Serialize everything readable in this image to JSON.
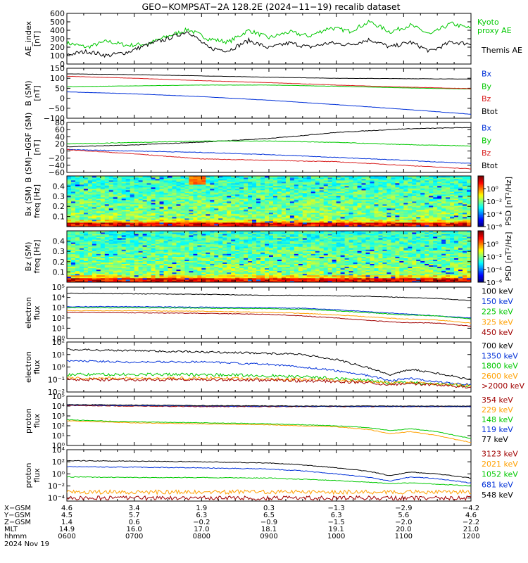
{
  "title": "GEO−KOMPSAT−2A 128.2E (2024−11−19) recalib dataset",
  "colors": {
    "black": "#000000",
    "blue": "#0030d8",
    "green": "#00c800",
    "red": "#d81e1e",
    "orange": "#ffa000",
    "darkred": "#a00000"
  },
  "chart_data": [
    {
      "id": "ae",
      "type": "line",
      "ylabel": [
        "AE_index",
        "[nT]"
      ],
      "ylim": [
        0,
        600
      ],
      "yticks": [
        "600",
        "500",
        "400",
        "300",
        "200",
        "100",
        "0"
      ],
      "ytick_values": [
        600,
        500,
        400,
        300,
        200,
        100,
        0
      ],
      "x_hours": [
        6.0,
        6.3,
        6.6,
        6.9,
        7.2,
        7.5,
        7.8,
        8.1,
        8.4,
        8.7,
        9.0,
        9.3,
        9.6,
        9.9,
        10.2,
        10.5,
        10.8,
        11.1,
        11.4,
        11.7,
        12.0
      ],
      "series": [
        {
          "name": "Kyoto proxy AE",
          "color": "green",
          "values": [
            250,
            200,
            270,
            220,
            240,
            330,
            410,
            300,
            260,
            400,
            310,
            380,
            330,
            430,
            390,
            500,
            380,
            460,
            350,
            480,
            420
          ]
        },
        {
          "name": "Themis AE",
          "color": "black",
          "values": [
            110,
            150,
            100,
            140,
            230,
            300,
            390,
            190,
            160,
            280,
            190,
            250,
            200,
            250,
            230,
            290,
            200,
            260,
            150,
            260,
            240
          ]
        }
      ],
      "legend": [
        "Kyoto proxy AE",
        "Themis AE"
      ]
    },
    {
      "id": "bsm",
      "type": "line",
      "ylabel": [
        "B (SM)",
        "[nT]"
      ],
      "ylim": [
        -100,
        150
      ],
      "yticks": [
        "150",
        "100",
        "50",
        "0",
        "−50",
        "−100"
      ],
      "ytick_values": [
        150,
        100,
        50,
        0,
        -50,
        -100
      ],
      "x_hours": [
        6.0,
        7.0,
        8.0,
        9.0,
        10.0,
        11.0,
        12.0
      ],
      "series": [
        {
          "name": "Btot",
          "color": "black",
          "values": [
            122,
            118,
            112,
            105,
            100,
            98,
            96
          ]
        },
        {
          "name": "By",
          "color": "green",
          "values": [
            58,
            62,
            66,
            66,
            60,
            52,
            46
          ]
        },
        {
          "name": "Bz",
          "color": "red",
          "values": [
            110,
            100,
            88,
            78,
            66,
            56,
            48
          ]
        },
        {
          "name": "Bx",
          "color": "blue",
          "values": [
            32,
            22,
            8,
            -10,
            -32,
            -55,
            -80
          ]
        }
      ],
      "legend": [
        "Bx",
        "By",
        "Bz",
        "Btot"
      ]
    },
    {
      "id": "bigrf",
      "type": "line",
      "ylabel": [
        "B (SM)−IGRF (SM)",
        "[nT]"
      ],
      "ylim": [
        -60,
        80
      ],
      "yticks": [
        "80",
        "60",
        "40",
        "20",
        "0",
        "−20",
        "−40",
        "−60"
      ],
      "ytick_values": [
        80,
        60,
        40,
        20,
        0,
        -20,
        -40,
        -60
      ],
      "x_hours": [
        6.0,
        7.0,
        8.0,
        9.0,
        10.0,
        11.0,
        12.0
      ],
      "series": [
        {
          "name": "Btot",
          "color": "black",
          "values": [
            12,
            17,
            25,
            35,
            52,
            62,
            66
          ]
        },
        {
          "name": "By",
          "color": "green",
          "values": [
            20,
            24,
            28,
            28,
            24,
            18,
            14
          ]
        },
        {
          "name": "Bx",
          "color": "blue",
          "values": [
            4,
            0,
            -4,
            -10,
            -18,
            -26,
            -35
          ]
        },
        {
          "name": "Bz",
          "color": "red",
          "values": [
            4,
            -8,
            -22,
            -26,
            -30,
            -40,
            -50
          ]
        }
      ],
      "legend": [
        "Bx",
        "By",
        "Bz",
        "Btot"
      ]
    },
    {
      "id": "bxspec",
      "type": "heatmap",
      "ylabel": [
        "Bx (SM)",
        "freq [Hz]"
      ],
      "ylim": [
        0.0,
        0.5
      ],
      "yticks": [
        "0.4",
        "0.3",
        "0.2",
        "0.1"
      ],
      "ytick_values": [
        0.4,
        0.3,
        0.2,
        0.1
      ],
      "colorbar": {
        "label": "PSD [nT²/Hz]",
        "ticks": [
          "10⁰",
          "10⁻²",
          "10⁻⁴",
          "10⁻⁶"
        ],
        "range_log": [
          -6,
          2
        ]
      }
    },
    {
      "id": "bzspec",
      "type": "heatmap",
      "ylabel": [
        "Bz (SM)",
        "freq [Hz]"
      ],
      "ylim": [
        0.0,
        0.5
      ],
      "yticks": [
        "0.4",
        "0.3",
        "0.2",
        "0.1"
      ],
      "ytick_values": [
        0.4,
        0.3,
        0.2,
        0.1
      ],
      "colorbar": {
        "label": "PSD [nT²/Hz]",
        "ticks": [
          "10⁰",
          "10⁻²",
          "10⁻⁴",
          "10⁻⁶"
        ],
        "range_log": [
          -6,
          2
        ]
      }
    },
    {
      "id": "elow",
      "type": "line",
      "log": true,
      "ylabel": [
        "electron",
        "flux"
      ],
      "ylim_log": [
        0,
        5
      ],
      "yticks": [
        "10⁵",
        "10⁴",
        "10³",
        "10²",
        "10¹",
        "10⁰"
      ],
      "ytick_values": [
        5,
        4,
        3,
        2,
        1,
        0
      ],
      "x_hours": [
        6.0,
        7.0,
        8.0,
        9.0,
        9.5,
        10.0,
        10.5,
        11.0,
        11.5,
        12.0
      ],
      "series": [
        {
          "name": "100 keV",
          "color": "black",
          "values_log": [
            4.4,
            4.35,
            4.3,
            4.2,
            4.2,
            4.15,
            4.1,
            4.0,
            3.9,
            3.7
          ]
        },
        {
          "name": "150 keV",
          "color": "blue",
          "values_log": [
            3.1,
            3.1,
            3.05,
            3.0,
            2.95,
            2.8,
            2.6,
            2.4,
            2.2,
            2.0
          ]
        },
        {
          "name": "225 keV",
          "color": "green",
          "values_log": [
            3.0,
            3.0,
            2.95,
            2.9,
            2.85,
            2.7,
            2.5,
            2.3,
            2.2,
            1.9
          ]
        },
        {
          "name": "325 keV",
          "color": "orange",
          "values_log": [
            2.7,
            2.7,
            2.65,
            2.55,
            2.45,
            2.3,
            2.1,
            1.9,
            1.8,
            1.5
          ]
        },
        {
          "name": "450 keV",
          "color": "darkred",
          "values_log": [
            2.55,
            2.5,
            2.45,
            2.35,
            2.2,
            2.0,
            1.75,
            1.55,
            1.5,
            1.2
          ]
        }
      ],
      "legend": [
        "100 keV",
        "150 keV",
        "225 keV",
        "325 keV",
        "450 keV"
      ]
    },
    {
      "id": "ehigh",
      "type": "line",
      "log": true,
      "ylabel": [
        "electron",
        "flux"
      ],
      "ylim_log": [
        -2,
        2
      ],
      "yticks": [
        "10²",
        "10¹",
        "10⁰",
        "10⁻¹",
        "10⁻²"
      ],
      "ytick_values": [
        2,
        1,
        0,
        -1,
        -2
      ],
      "x_hours": [
        6.0,
        7.0,
        8.0,
        9.0,
        9.5,
        10.0,
        10.5,
        10.8,
        11.1,
        11.5,
        12.0
      ],
      "series": [
        {
          "name": "700 keV",
          "color": "black",
          "values_log": [
            1.4,
            1.3,
            1.2,
            1.1,
            1.0,
            0.6,
            -0.1,
            -0.6,
            -0.2,
            -0.5,
            -1.0
          ]
        },
        {
          "name": "1350 keV",
          "color": "blue",
          "values_log": [
            0.5,
            0.4,
            0.4,
            0.2,
            0.0,
            -0.3,
            -0.7,
            -1.1,
            -0.9,
            -1.2,
            -1.4
          ]
        },
        {
          "name": "1800 keV",
          "color": "green",
          "values_log": [
            -0.6,
            -0.6,
            -0.6,
            -0.7,
            -0.8,
            -0.9,
            -1.1,
            -1.3,
            -1.2,
            -1.4,
            -1.5
          ]
        },
        {
          "name": "2600 keV",
          "color": "orange",
          "values_log": [
            -0.9,
            -0.9,
            -0.9,
            -0.95,
            -1.0,
            -1.05,
            -1.15,
            -1.3,
            -1.25,
            -1.4,
            -1.5
          ]
        },
        {
          "name": ">2000 keV",
          "color": "darkred",
          "values_log": [
            -1.0,
            -1.0,
            -1.0,
            -1.05,
            -1.1,
            -1.15,
            -1.25,
            -1.4,
            -1.3,
            -1.45,
            -1.6
          ]
        }
      ],
      "legend": [
        "700 keV",
        "1350 keV",
        "1800 keV",
        "2600 keV",
        ">2000 keV"
      ]
    },
    {
      "id": "phigh",
      "type": "line",
      "log": true,
      "ylabel": [
        "proton",
        "flux"
      ],
      "ylim_log": [
        0,
        5
      ],
      "yticks": [
        "10⁵",
        "10⁴",
        "10³",
        "10²",
        "10¹",
        "10⁰"
      ],
      "ytick_values": [
        5,
        4,
        3,
        2,
        1,
        0
      ],
      "x_hours": [
        6.0,
        7.0,
        8.0,
        9.0,
        9.5,
        10.0,
        10.5,
        10.8,
        11.1,
        11.5,
        12.0
      ],
      "series": [
        {
          "name": "354 keV",
          "color": "darkred",
          "values_log": [
            4.05,
            4.0,
            3.95,
            3.95,
            3.95,
            3.95,
            3.95,
            3.95,
            3.95,
            3.95,
            3.95
          ]
        },
        {
          "name": "229 keV",
          "color": "orange",
          "values_log": [
            2.5,
            2.3,
            2.2,
            2.1,
            2.0,
            1.9,
            1.6,
            1.2,
            1.4,
            1.0,
            0.3
          ]
        },
        {
          "name": "148 keV",
          "color": "green",
          "values_log": [
            2.6,
            2.4,
            2.3,
            2.2,
            2.1,
            2.0,
            1.8,
            1.5,
            1.7,
            1.4,
            0.7
          ]
        },
        {
          "name": "119 keV",
          "color": "blue",
          "values_log": [
            4.1,
            4.05,
            4.0,
            3.98,
            3.97,
            3.96,
            3.95,
            3.95,
            3.95,
            3.95,
            3.95
          ]
        },
        {
          "name": "77 keV",
          "color": "black",
          "values_log": [
            4.15,
            4.1,
            4.05,
            4.02,
            4.0,
            4.0,
            4.0,
            4.0,
            4.0,
            4.0,
            4.0
          ]
        }
      ],
      "legend": [
        "354 keV",
        "229 keV",
        "148 keV",
        "119 keV",
        "77 keV"
      ]
    },
    {
      "id": "plow",
      "type": "line",
      "log": true,
      "ylabel": [
        "proton",
        "flux"
      ],
      "ylim_log": [
        -4.5,
        4
      ],
      "yticks": [
        "10⁴",
        "10²",
        "10⁰",
        "10⁻²",
        "10⁻⁴"
      ],
      "ytick_values": [
        4,
        2,
        0,
        -2,
        -4
      ],
      "x_hours": [
        6.0,
        7.0,
        8.0,
        9.0,
        9.5,
        10.0,
        10.5,
        10.8,
        11.1,
        11.5,
        12.0
      ],
      "series": [
        {
          "name": "548 keV",
          "color": "black",
          "values_log": [
            2.2,
            2.1,
            2.0,
            1.8,
            1.5,
            1.0,
            0.4,
            -0.3,
            0.3,
            0.0,
            -0.7
          ]
        },
        {
          "name": "681 keV",
          "color": "blue",
          "values_log": [
            1.2,
            1.1,
            1.0,
            0.8,
            0.5,
            0.0,
            -0.6,
            -1.2,
            -0.5,
            -0.8,
            -1.5
          ]
        },
        {
          "name": "1052 keV",
          "color": "green",
          "values_log": [
            -0.5,
            -0.6,
            -0.6,
            -0.7,
            -0.9,
            -1.1,
            -1.4,
            -1.6,
            -1.5,
            -1.7,
            -2.0
          ]
        },
        {
          "name": "2021 keV",
          "color": "orange",
          "values_log": [
            -3.0,
            -3.0,
            -3.0,
            -3.0,
            -3.0,
            -3.0,
            -3.0,
            -3.0,
            -3.0,
            -3.0,
            -3.0
          ]
        },
        {
          "name": "3123 keV",
          "color": "darkred",
          "values_log": [
            -4.0,
            -4.0,
            -4.0,
            -4.0,
            -4.0,
            -4.0,
            -4.0,
            -4.0,
            -4.0,
            -4.0,
            -4.0
          ]
        }
      ],
      "legend": [
        "3123 keV",
        "2021 keV",
        "1052 keV",
        "681 keV",
        "548 keV"
      ]
    }
  ],
  "time_axis": {
    "row_labels": [
      "X−GSM",
      "Y−GSM",
      "Z−GSM",
      "MLT",
      "hhmm",
      "2024 Nov 19"
    ],
    "columns": [
      {
        "x": "4.6",
        "y": "4.5",
        "z": "1.4",
        "mlt": "14.9",
        "hhmm": "0600"
      },
      {
        "x": "3.4",
        "y": "5.7",
        "z": "0.6",
        "mlt": "16.0",
        "hhmm": "0700"
      },
      {
        "x": "1.9",
        "y": "6.3",
        "z": "−0.2",
        "mlt": "17.0",
        "hhmm": "0800"
      },
      {
        "x": "0.3",
        "y": "6.5",
        "z": "−0.9",
        "mlt": "18.1",
        "hhmm": "0900"
      },
      {
        "x": "−1.3",
        "y": "6.3",
        "z": "−1.5",
        "mlt": "19.1",
        "hhmm": "1000"
      },
      {
        "x": "−2.9",
        "y": "5.6",
        "z": "−2.0",
        "mlt": "20.0",
        "hhmm": "1100"
      },
      {
        "x": "−4.2",
        "y": "4.6",
        "z": "−2.2",
        "mlt": "21.0",
        "hhmm": "1200"
      }
    ]
  }
}
